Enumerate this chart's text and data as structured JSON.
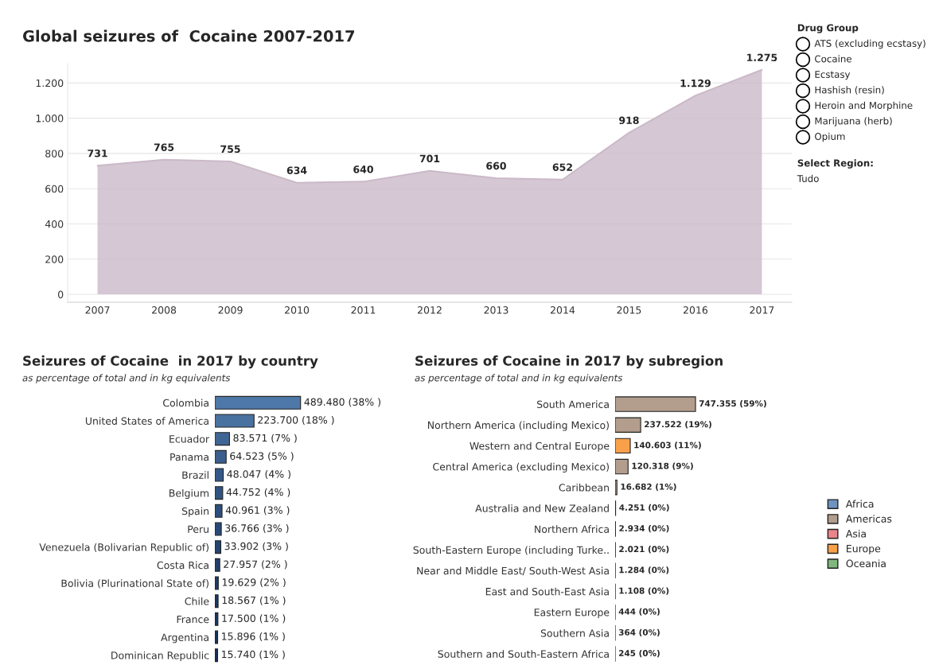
{
  "chart_data": [
    {
      "type": "area",
      "title": "Global seizures of  Cocaine 2007-2017",
      "categories": [
        "2007",
        "2008",
        "2009",
        "2010",
        "2011",
        "2012",
        "2013",
        "2014",
        "2015",
        "2016",
        "2017"
      ],
      "series": [
        {
          "color": "#cbb9c8",
          "values": [
            731,
            765,
            755,
            634,
            640,
            701,
            660,
            652,
            918,
            1129,
            1275
          ],
          "value_labels": [
            "731",
            "765",
            "755",
            "634",
            "640",
            "701",
            "660",
            "652",
            "918",
            "1.129",
            "1.275"
          ]
        }
      ],
      "ylim": [
        -45,
        1310
      ],
      "yticks": [
        0,
        200,
        400,
        600,
        800,
        {
          "value": 1000,
          "label": "1.000"
        },
        {
          "value": 1200,
          "label": "1.200"
        }
      ],
      "grid": "y"
    },
    {
      "type": "bar",
      "orientation": "horizontal",
      "title": "Seizures of Cocaine  in 2017 by country",
      "subtitle": "as percentage of total and in kg equivalents",
      "categories": [
        "Colombia",
        "United States of America",
        "Ecuador",
        "Panama",
        "Brazil",
        "Belgium",
        "Spain",
        "Peru",
        "Venezuela (Bolivarian Republic of)",
        "Costa Rica",
        "Bolivia (Plurinational State of)",
        "Chile",
        "France",
        "Argentina",
        "Dominican Republic"
      ],
      "series": [
        {
          "colors": [
            "#4e78a8",
            "#4a72a0",
            "#3f6594",
            "#3a5f8e",
            "#355887",
            "#315382",
            "#2d4e7c",
            "#294977",
            "#264472",
            "#22406d",
            "#1f3b68",
            "#1c3764",
            "#1a3461",
            "#18315e",
            "#16305c"
          ],
          "values": [
            489480,
            223700,
            83571,
            64523,
            48047,
            44752,
            40961,
            36766,
            33902,
            27957,
            19629,
            18567,
            17500,
            15896,
            15740
          ],
          "value_labels": [
            "489.480 (38% )",
            "223.700 (18% )",
            "83.571 (7% )",
            "64.523 (5% )",
            "48.047 (4% )",
            "44.752 (4% )",
            "40.961 (3% )",
            "36.766 (3% )",
            "33.902 (3% )",
            "27.957 (2% )",
            "19.629 (2% )",
            "18.567 (1% )",
            "17.500 (1% )",
            "15.896 (1% )",
            "15.740 (1% )"
          ]
        }
      ],
      "tick_labels": "y"
    },
    {
      "type": "bar",
      "orientation": "horizontal",
      "title": "Seizures of Cocaine in 2017 by subregion",
      "subtitle": "as percentage of total and in kg equivalents",
      "categories": [
        "South America",
        "Northern America (including Mexico)",
        "Western and Central Europe",
        "Central America (excluding Mexico)",
        "Caribbean",
        "Australia and New Zealand",
        "Northern Africa",
        "South-Eastern Europe (including Turke..",
        "Near and Middle East/ South-West Asia",
        "East and South-East Asia",
        "Eastern Europe",
        "Southern Asia",
        "Southern and South-Eastern Africa"
      ],
      "series": [
        {
          "name": "Africa",
          "color": "#6f93c0",
          "values": [
            null,
            null,
            null,
            null,
            null,
            null,
            2934,
            null,
            null,
            null,
            null,
            null,
            245
          ],
          "value_labels": [
            null,
            null,
            null,
            null,
            null,
            null,
            "2.934 (0%)",
            null,
            null,
            null,
            null,
            null,
            "245 (0%)"
          ]
        },
        {
          "name": "Americas",
          "color": "#b39d8d",
          "values": [
            747355,
            237522,
            null,
            120318,
            16682,
            null,
            null,
            null,
            null,
            null,
            null,
            null,
            null
          ],
          "value_labels": [
            "747.355 (59%)",
            "237.522 (19%)",
            null,
            "120.318 (9%)",
            "16.682 (1%)",
            null,
            null,
            null,
            null,
            null,
            null,
            null,
            null
          ]
        },
        {
          "name": "Asia",
          "color": "#e9858a",
          "values": [
            null,
            null,
            null,
            null,
            null,
            null,
            null,
            null,
            1284,
            1108,
            null,
            364,
            null
          ],
          "value_labels": [
            null,
            null,
            null,
            null,
            null,
            null,
            null,
            null,
            "1.284 (0%)",
            "1.108 (0%)",
            null,
            "364 (0%)",
            null
          ]
        },
        {
          "name": "Europe",
          "color": "#f9a04a",
          "values": [
            null,
            null,
            140603,
            null,
            null,
            null,
            null,
            2021,
            null,
            null,
            444,
            null,
            null
          ],
          "value_labels": [
            null,
            null,
            "140.603 (11%)",
            null,
            null,
            null,
            null,
            "2.021 (0%)",
            null,
            null,
            "444 (0%)",
            null,
            null
          ]
        },
        {
          "name": "Oceania",
          "color": "#80b77e",
          "values": [
            null,
            null,
            null,
            null,
            null,
            4251,
            null,
            null,
            null,
            null,
            null,
            null,
            null
          ],
          "value_labels": [
            null,
            null,
            null,
            null,
            null,
            "4.251 (0%)",
            null,
            null,
            null,
            null,
            null,
            null,
            null
          ]
        }
      ],
      "tick_labels": "y",
      "legend": "right"
    },
    {
      "type": "other",
      "title": "Drug Group",
      "categories": [
        "ATS (excluding ecstasy)",
        "Cocaine",
        "Ecstasy",
        "Hashish (resin)",
        "Heroin and Morphine",
        "Marijuana (herb)",
        "Opium"
      ]
    },
    {
      "type": "other",
      "title": "Select Region:",
      "annotations": [
        "Tudo"
      ]
    }
  ]
}
